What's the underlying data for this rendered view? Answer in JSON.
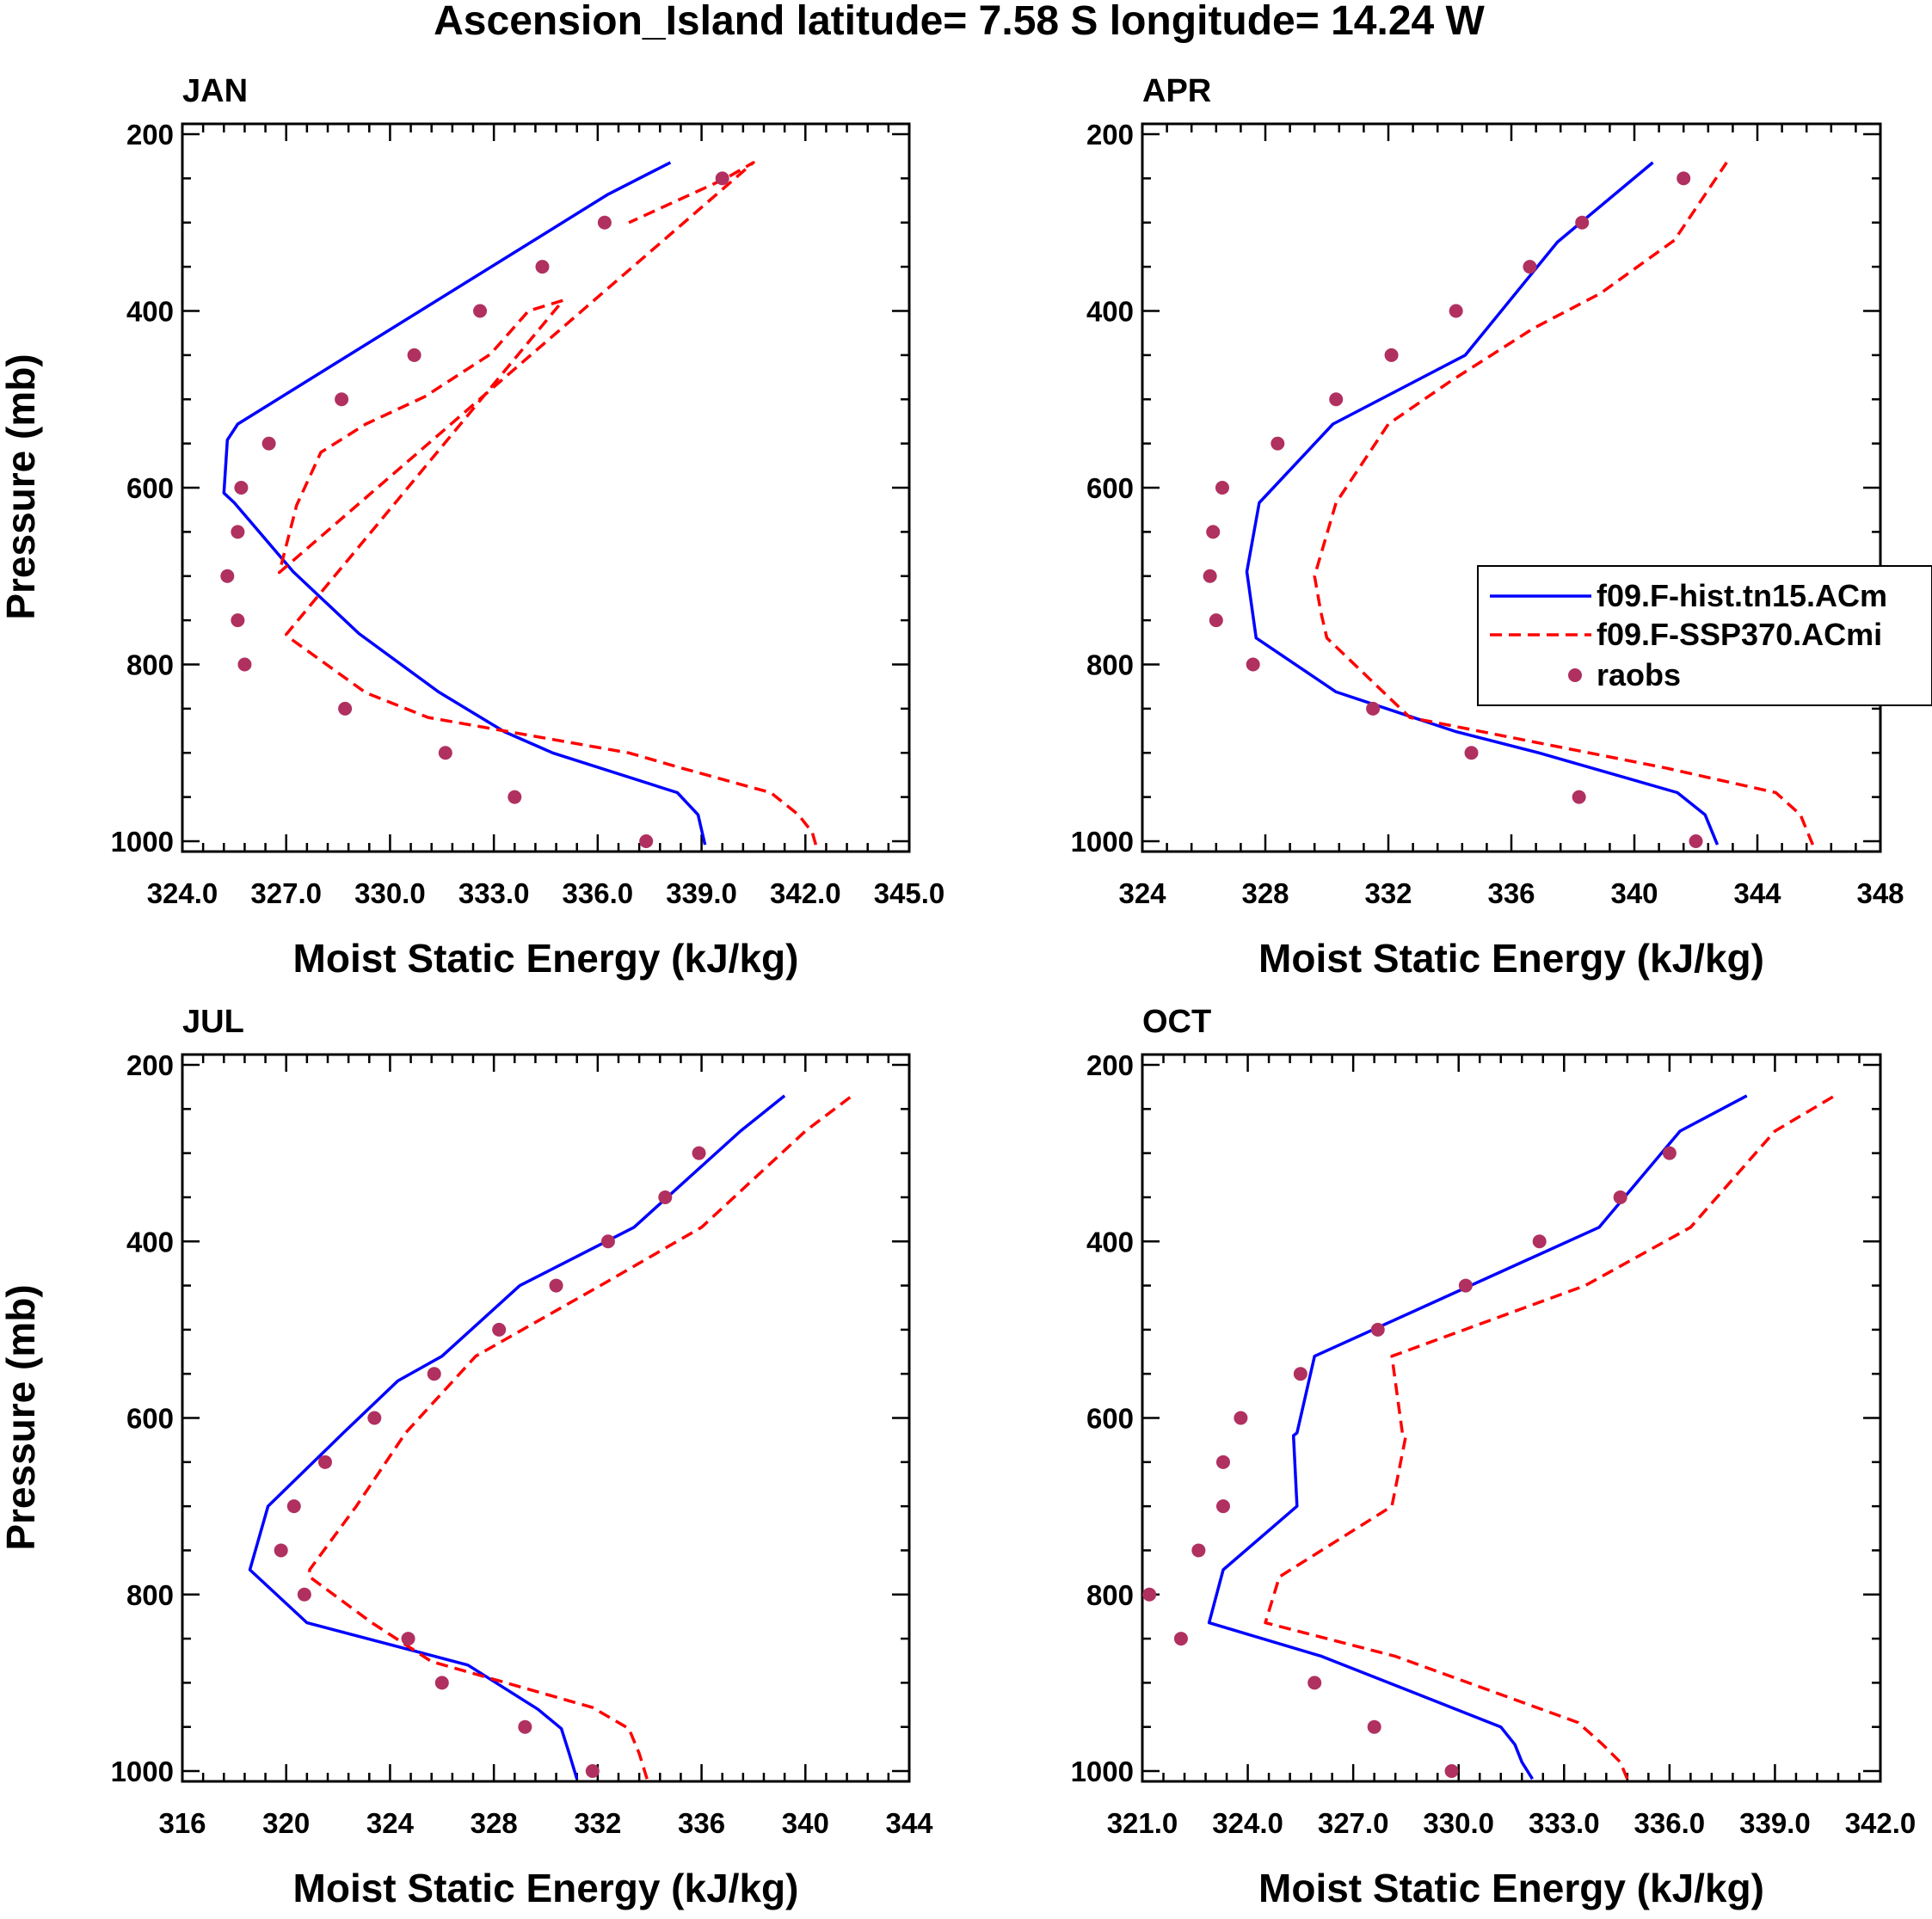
{
  "figure_title": "Ascension_Island  latitude= 7.58 S longitude= 14.24 W",
  "legend": {
    "entries": [
      "f09.F-hist.tn15.ACm",
      "f09.F-SSP370.ACmi",
      "raobs"
    ],
    "series_colors": [
      "#0000ff",
      "#ff0000",
      "#b03060"
    ]
  },
  "chart_data": [
    {
      "type": "line",
      "title": "JAN",
      "xlabel": "Moist Static Energy (kJ/kg)",
      "ylabel": "Pressure (mb)",
      "xlim": [
        324,
        345
      ],
      "ylim": [
        200,
        1000
      ],
      "xticks": [
        324,
        327,
        330,
        333,
        336,
        339,
        342,
        345
      ],
      "xtick_labels": [
        "324.0",
        "327.0",
        "330.0",
        "333.0",
        "336.0",
        "339.0",
        "342.0",
        "345.0"
      ],
      "yticks": [
        200,
        400,
        600,
        800,
        1000
      ],
      "ytick_labels": [
        "200",
        "400",
        "600",
        "800",
        "1000"
      ],
      "series": [
        {
          "name": "f09.F-hist.tn15.ACm",
          "style": "solid",
          "x": [
            339.1,
            338.9,
            338.3,
            334.7,
            333.3,
            331.4,
            329.1,
            327.2,
            325.5,
            325.2,
            325.3,
            325.6,
            336.3,
            338.1
          ],
          "y": [
            1004,
            970,
            945,
            900,
            876,
            831,
            765,
            695,
            617,
            606,
            546,
            528,
            268,
            232
          ]
        },
        {
          "name": "f09.F-SSP370.ACmi",
          "style": "dashed",
          "x": [
            342.3,
            342.2,
            341.8,
            341.0,
            338.4,
            336.9,
            331.1,
            329.3,
            327.1,
            327.0,
            335.0,
            334.0,
            332.9,
            331.0,
            329.3,
            328.0,
            327.3,
            326.8,
            340.5,
            339.7,
            336.9
          ],
          "y": [
            1004,
            990,
            970,
            945,
            917,
            900,
            860,
            832,
            770,
            766,
            388,
            400,
            449,
            497,
            528,
            560,
            620,
            696,
            232,
            250,
            300
          ]
        },
        {
          "name": "raobs",
          "style": "markers",
          "x": [
            337.4,
            333.6,
            331.6,
            328.7,
            325.8,
            325.6,
            325.3,
            325.6,
            325.7,
            326.5,
            328.6,
            330.7,
            332.6,
            334.4,
            336.2,
            339.6
          ],
          "y": [
            1000,
            950,
            900,
            850,
            800,
            750,
            700,
            650,
            600,
            550,
            500,
            450,
            400,
            350,
            300,
            250
          ]
        }
      ]
    },
    {
      "type": "line",
      "title": "APR",
      "xlabel": "Moist Static Energy (kJ/kg)",
      "ylabel": "",
      "xlim": [
        324,
        348
      ],
      "ylim": [
        200,
        1000
      ],
      "xticks": [
        324,
        328,
        332,
        336,
        340,
        344,
        348
      ],
      "xtick_labels": [
        "324",
        "328",
        "332",
        "336",
        "340",
        "344",
        "348"
      ],
      "yticks": [
        200,
        400,
        600,
        800,
        1000
      ],
      "ytick_labels": [
        "200",
        "400",
        "600",
        "800",
        "1000"
      ],
      "series": [
        {
          "name": "f09.F-hist.tn15.ACm",
          "style": "solid",
          "x": [
            342.7,
            342.3,
            341.4,
            336.9,
            334.2,
            330.3,
            327.7,
            327.4,
            327.8,
            330.2,
            334.5,
            337.5,
            340.6
          ],
          "y": [
            1004,
            970,
            945,
            900,
            876,
            831,
            770,
            695,
            617,
            528,
            450,
            322,
            232
          ]
        },
        {
          "name": "f09.F-SSP370.ACmi",
          "style": "dashed",
          "x": [
            345.8,
            345.4,
            344.6,
            341.0,
            332.7,
            330.0,
            329.8,
            329.6,
            330.3,
            332.0,
            334.0,
            336.7,
            338.9,
            341.3,
            343.0
          ],
          "y": [
            1004,
            970,
            945,
            917,
            860,
            770,
            740,
            700,
            617,
            528,
            480,
            420,
            380,
            320,
            232
          ]
        },
        {
          "name": "raobs",
          "style": "markers",
          "x": [
            342.0,
            338.2,
            334.7,
            331.5,
            327.6,
            326.4,
            326.2,
            326.3,
            326.6,
            328.4,
            330.3,
            332.1,
            334.2,
            336.6,
            338.3,
            341.6
          ],
          "y": [
            1000,
            950,
            900,
            850,
            800,
            750,
            700,
            650,
            600,
            550,
            500,
            450,
            400,
            350,
            300,
            250
          ]
        }
      ]
    },
    {
      "type": "line",
      "title": "JUL",
      "xlabel": "Moist Static Energy (kJ/kg)",
      "ylabel": "Pressure (mb)",
      "xlim": [
        316,
        344
      ],
      "ylim": [
        200,
        1000
      ],
      "xticks": [
        316,
        320,
        324,
        328,
        332,
        336,
        340,
        344
      ],
      "xtick_labels": [
        "316",
        "320",
        "324",
        "328",
        "332",
        "336",
        "340",
        "344"
      ],
      "yticks": [
        200,
        400,
        600,
        800,
        1000
      ],
      "ytick_labels": [
        "200",
        "400",
        "600",
        "800",
        "1000"
      ],
      "series": [
        {
          "name": "f09.F-hist.tn15.ACm",
          "style": "solid",
          "x": [
            331.2,
            330.9,
            330.6,
            329.7,
            327.0,
            320.8,
            318.6,
            319.3,
            322.2,
            324.3,
            326.0,
            329.0,
            333.4,
            337.5,
            339.2
          ],
          "y": [
            1009,
            980,
            952,
            930,
            880,
            832,
            772,
            700,
            617,
            558,
            530,
            450,
            384,
            275,
            235
          ]
        },
        {
          "name": "f09.F-SSP370.ACmi",
          "style": "dashed",
          "x": [
            333.9,
            333.6,
            333.2,
            331.8,
            325.6,
            323.3,
            320.9,
            320.9,
            322.7,
            324.6,
            327.3,
            332.1,
            336.0,
            340.0,
            341.8
          ],
          "y": [
            1009,
            980,
            952,
            928,
            876,
            832,
            780,
            772,
            700,
            617,
            530,
            450,
            384,
            275,
            235
          ]
        },
        {
          "name": "raobs",
          "style": "markers",
          "x": [
            331.8,
            329.2,
            326.0,
            324.7,
            320.7,
            319.8,
            320.3,
            321.5,
            323.4,
            325.7,
            328.2,
            330.4,
            332.4,
            334.6,
            335.9
          ],
          "y": [
            1000,
            950,
            900,
            850,
            800,
            750,
            700,
            650,
            600,
            550,
            500,
            450,
            400,
            350,
            300
          ]
        }
      ]
    },
    {
      "type": "line",
      "title": "OCT",
      "xlabel": "Moist Static Energy (kJ/kg)",
      "ylabel": "",
      "xlim": [
        321,
        342
      ],
      "ylim": [
        200,
        1000
      ],
      "xticks": [
        321,
        324,
        327,
        330,
        333,
        336,
        339,
        342
      ],
      "xtick_labels": [
        "321.0",
        "324.0",
        "327.0",
        "330.0",
        "333.0",
        "336.0",
        "339.0",
        "342.0"
      ],
      "yticks": [
        200,
        400,
        600,
        800,
        1000
      ],
      "ytick_labels": [
        "200",
        "400",
        "600",
        "800",
        "1000"
      ],
      "series": [
        {
          "name": "f09.F-hist.tn15.ACm",
          "style": "solid",
          "x": [
            332.1,
            331.8,
            331.6,
            331.2,
            326.1,
            322.9,
            323.3,
            325.4,
            325.3,
            325.4,
            325.9,
            334.0,
            336.3,
            338.2
          ],
          "y": [
            1009,
            990,
            970,
            950,
            870,
            832,
            772,
            700,
            620,
            617,
            530,
            384,
            275,
            235
          ]
        },
        {
          "name": "f09.F-SSP370.ACmi",
          "style": "dashed",
          "x": [
            334.8,
            334.6,
            334.1,
            333.4,
            328.2,
            324.5,
            324.9,
            328.1,
            328.5,
            328.4,
            328.1,
            333.6,
            336.6,
            339.0,
            340.7
          ],
          "y": [
            1009,
            990,
            970,
            945,
            870,
            832,
            780,
            700,
            620,
            617,
            530,
            450,
            384,
            275,
            235
          ]
        },
        {
          "name": "raobs",
          "style": "markers",
          "x": [
            329.8,
            327.6,
            325.9,
            322.1,
            321.2,
            322.6,
            323.3,
            323.3,
            323.8,
            325.5,
            327.7,
            330.2,
            332.3,
            334.6,
            336.0
          ],
          "y": [
            1000,
            950,
            900,
            850,
            800,
            750,
            700,
            650,
            600,
            550,
            500,
            450,
            400,
            350,
            300
          ]
        }
      ]
    }
  ]
}
